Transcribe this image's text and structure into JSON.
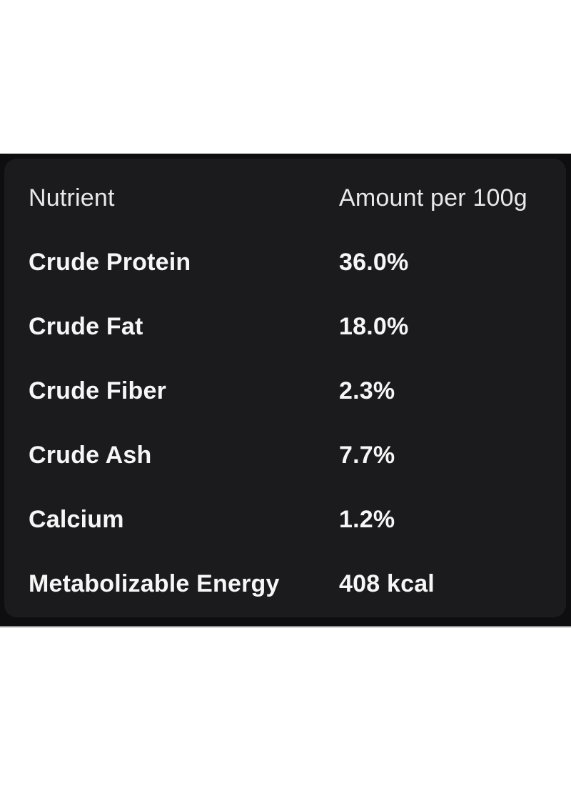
{
  "table": {
    "header": {
      "nutrient": "Nutrient",
      "amount": "Amount per 100g"
    },
    "rows": [
      {
        "nutrient": "Crude Protein",
        "amount": "36.0%"
      },
      {
        "nutrient": "Crude Fat",
        "amount": "18.0%"
      },
      {
        "nutrient": "Crude Fiber",
        "amount": "2.3%"
      },
      {
        "nutrient": "Crude Ash",
        "amount": "7.7%"
      },
      {
        "nutrient": "Calcium",
        "amount": "1.2%"
      },
      {
        "nutrient": "Metabolizable Energy",
        "amount": "408 kcal"
      }
    ]
  },
  "colors": {
    "page_background": "#ffffff",
    "band_background": "#0e0e10",
    "card_background": "#1b1b1d",
    "header_text": "#e9e9e9",
    "row_text": "#f6f6f6",
    "band_bottom_line": "#8f8f8f"
  }
}
